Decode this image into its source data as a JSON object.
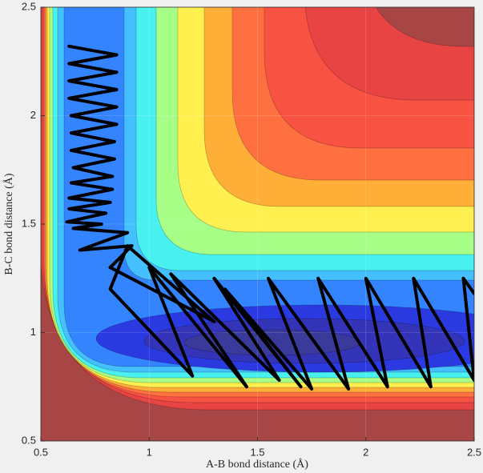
{
  "chart_data": {
    "type": "line",
    "x_label": "A-B bond distance (Å)",
    "y_label": "B-C bond distance (Å)",
    "xlim": [
      0.5,
      2.5
    ],
    "ylim": [
      0.5,
      2.5
    ],
    "xticks": [
      0.5,
      1,
      1.5,
      2,
      2.5
    ],
    "yticks": [
      0.5,
      1,
      1.5,
      2,
      2.5
    ],
    "grid": true,
    "series": [
      {
        "color": "#000000",
        "x": [
          0.63,
          0.85,
          0.63,
          0.85,
          0.63,
          0.85,
          0.63,
          0.85,
          0.64,
          0.85,
          0.64,
          0.84,
          0.64,
          0.84,
          0.65,
          0.83,
          0.64,
          0.83,
          0.63,
          0.82,
          0.63,
          0.8,
          0.62,
          0.78,
          0.65,
          0.9,
          0.68,
          0.92,
          0.82,
          1.3,
          0.9,
          0.82,
          1.2,
          1.0,
          1.45,
          1.1,
          1.6,
          1.3,
          1.7,
          1.35,
          1.75,
          1.55,
          1.92,
          1.78,
          2.1,
          2.0,
          2.3,
          2.22,
          2.5,
          2.45,
          2.5
        ],
        "values": [
          2.32,
          2.28,
          2.24,
          2.2,
          2.16,
          2.12,
          2.08,
          2.04,
          2.0,
          1.96,
          1.92,
          1.88,
          1.84,
          1.8,
          1.76,
          1.72,
          1.69,
          1.66,
          1.62,
          1.6,
          1.57,
          1.55,
          1.51,
          1.5,
          1.48,
          1.46,
          1.38,
          1.4,
          1.3,
          1.05,
          1.4,
          1.2,
          0.8,
          1.3,
          0.75,
          1.27,
          0.78,
          1.25,
          0.75,
          1.2,
          0.74,
          1.25,
          0.74,
          1.25,
          0.75,
          1.25,
          0.75,
          1.25,
          0.78,
          1.25,
          1.18
        ]
      }
    ]
  }
}
